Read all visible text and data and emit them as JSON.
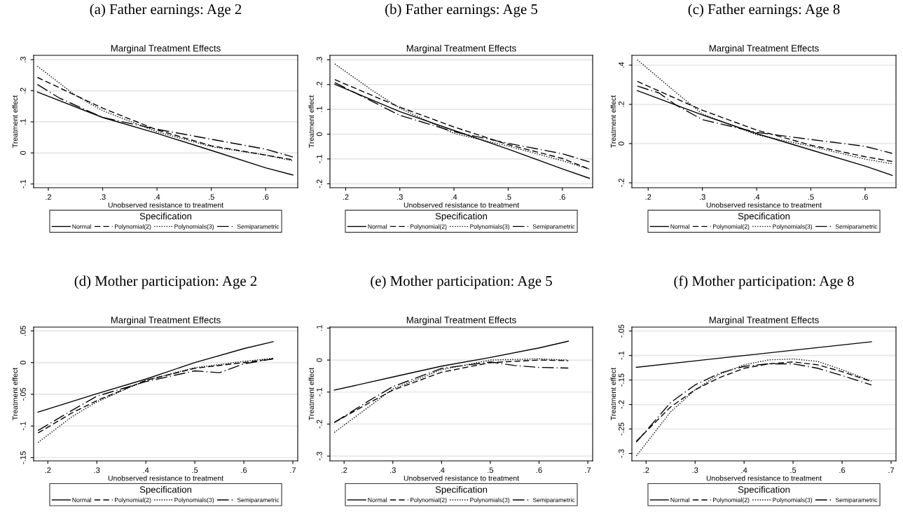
{
  "chart_data": [
    {
      "type": "line",
      "title": "(a) Father earnings: Age 2",
      "subtitle": "Marginal Treatment Effects",
      "xlabel": "Unobserved resistance to treatment",
      "ylabel": "Treatment effect",
      "legend_title": "Specification",
      "legend": "bottom",
      "grid": "y",
      "xlim": [
        0.173,
        0.659
      ],
      "ylim": [
        -0.112,
        0.314
      ],
      "xticks": [
        {
          "value": 0.2,
          "label": ".2"
        },
        {
          "value": 0.3,
          "label": ".3"
        },
        {
          "value": 0.4,
          "label": ".4"
        },
        {
          "value": 0.5,
          "label": ".5"
        },
        {
          "value": 0.6,
          "label": ".6"
        }
      ],
      "yticks": [
        {
          "value": -0.1,
          "label": "-.1"
        },
        0,
        {
          "value": 0.1,
          "label": ".1"
        },
        {
          "value": 0.2,
          "label": ".2"
        },
        {
          "value": 0.3,
          "label": ".3"
        }
      ],
      "series": [
        {
          "name": "Normal",
          "color": "#000000",
          "line_style": "solid",
          "x": [
            0.18,
            0.3,
            0.4,
            0.5,
            0.6,
            0.65
          ],
          "values": [
            0.196,
            0.114,
            0.063,
            0.008,
            -0.048,
            -0.071
          ]
        },
        {
          "name": "Polynomial(2)",
          "color": "#000000",
          "line_style": "dashed",
          "x": [
            0.18,
            0.3,
            0.4,
            0.5,
            0.6,
            0.65
          ],
          "values": [
            0.243,
            0.144,
            0.074,
            0.023,
            -0.007,
            -0.022
          ]
        },
        {
          "name": "Polynomials(3)",
          "color": "#000000",
          "line_style": "dotted",
          "x": [
            0.18,
            0.25,
            0.3,
            0.4,
            0.5,
            0.6,
            0.65
          ],
          "values": [
            0.279,
            0.185,
            0.136,
            0.068,
            0.02,
            -0.007,
            -0.026
          ]
        },
        {
          "name": "Semiparametric",
          "color": "#000000",
          "line_style": "dashdot",
          "x": [
            0.18,
            0.22,
            0.3,
            0.4,
            0.5,
            0.6,
            0.65
          ],
          "values": [
            0.22,
            0.177,
            0.114,
            0.076,
            0.044,
            0.012,
            -0.013
          ]
        }
      ]
    },
    {
      "type": "line",
      "title": "(b) Father earnings: Age 5",
      "subtitle": "Marginal Treatment Effects",
      "xlabel": "Unobserved resistance to treatment",
      "ylabel": "Treatment effect",
      "legend_title": "Specification",
      "legend": "bottom",
      "grid": "y",
      "xlim": [
        0.171,
        0.656
      ],
      "ylim": [
        -0.216,
        0.318
      ],
      "xticks": [
        {
          "value": 0.2,
          "label": ".2"
        },
        {
          "value": 0.3,
          "label": ".3"
        },
        {
          "value": 0.4,
          "label": ".4"
        },
        {
          "value": 0.5,
          "label": ".5"
        },
        {
          "value": 0.6,
          "label": ".6"
        }
      ],
      "yticks": [
        {
          "value": -0.2,
          "label": "-.2"
        },
        {
          "value": -0.1,
          "label": "-.1"
        },
        0,
        {
          "value": 0.1,
          "label": ".1"
        },
        {
          "value": 0.2,
          "label": ".2"
        },
        {
          "value": 0.3,
          "label": ".3"
        }
      ],
      "series": [
        {
          "name": "Normal",
          "color": "#000000",
          "line_style": "solid",
          "x": [
            0.18,
            0.3,
            0.4,
            0.5,
            0.6,
            0.65
          ],
          "values": [
            0.201,
            0.091,
            0.015,
            -0.06,
            -0.14,
            -0.178
          ]
        },
        {
          "name": "Polynomial(2)",
          "color": "#000000",
          "line_style": "dashed",
          "x": [
            0.18,
            0.3,
            0.4,
            0.5,
            0.6,
            0.65
          ],
          "values": [
            0.22,
            0.109,
            0.029,
            -0.042,
            -0.098,
            -0.141
          ]
        },
        {
          "name": "Polynomials(3)",
          "color": "#000000",
          "line_style": "dotted",
          "x": [
            0.18,
            0.25,
            0.3,
            0.4,
            0.5,
            0.6,
            0.65
          ],
          "values": [
            0.283,
            0.175,
            0.105,
            0.003,
            -0.048,
            -0.107,
            -0.141
          ]
        },
        {
          "name": "Semiparametric",
          "color": "#000000",
          "line_style": "dashdot",
          "x": [
            0.18,
            0.3,
            0.4,
            0.5,
            0.6,
            0.65
          ],
          "values": [
            0.208,
            0.076,
            0.01,
            -0.037,
            -0.079,
            -0.112
          ]
        }
      ]
    },
    {
      "type": "line",
      "title": "(c) Father earnings: Age 8",
      "subtitle": "Marginal Treatment Effects",
      "xlabel": "Unobserved resistance to treatment",
      "ylabel": "Treatment effect",
      "legend_title": "Specification",
      "legend": "bottom",
      "grid": "y",
      "xlim": [
        0.17,
        0.657
      ],
      "ylim": [
        -0.225,
        0.45
      ],
      "xticks": [
        {
          "value": 0.2,
          "label": ".2"
        },
        {
          "value": 0.3,
          "label": ".3"
        },
        {
          "value": 0.4,
          "label": ".4"
        },
        {
          "value": 0.5,
          "label": ".5"
        },
        {
          "value": 0.6,
          "label": ".6"
        }
      ],
      "yticks": [
        {
          "value": -0.2,
          "label": "-.2"
        },
        0,
        {
          "value": 0.2,
          "label": ".2"
        },
        {
          "value": 0.4,
          "label": ".4"
        }
      ],
      "series": [
        {
          "name": "Normal",
          "color": "#000000",
          "line_style": "solid",
          "x": [
            0.18,
            0.3,
            0.4,
            0.5,
            0.6,
            0.65
          ],
          "values": [
            0.27,
            0.146,
            0.051,
            -0.032,
            -0.115,
            -0.162
          ]
        },
        {
          "name": "Polynomial(2)",
          "color": "#000000",
          "line_style": "dashed",
          "x": [
            0.18,
            0.3,
            0.4,
            0.5,
            0.6,
            0.65
          ],
          "values": [
            0.317,
            0.17,
            0.069,
            -0.008,
            -0.067,
            -0.091
          ]
        },
        {
          "name": "Polynomials(3)",
          "color": "#000000",
          "line_style": "dotted",
          "x": [
            0.18,
            0.25,
            0.3,
            0.4,
            0.5,
            0.6,
            0.65
          ],
          "values": [
            0.427,
            0.264,
            0.151,
            0.045,
            -0.014,
            -0.079,
            -0.103
          ]
        },
        {
          "name": "Semiparametric",
          "color": "#000000",
          "line_style": "dashdot",
          "x": [
            0.18,
            0.22,
            0.25,
            0.3,
            0.4,
            0.5,
            0.6,
            0.65
          ],
          "values": [
            0.293,
            0.258,
            0.199,
            0.122,
            0.057,
            0.021,
            -0.014,
            -0.05
          ]
        }
      ]
    },
    {
      "type": "line",
      "title": "(d) Mother participation: Age 2",
      "subtitle": "Marginal Treatment Effects",
      "xlabel": "Unobserved resistance to treatment",
      "ylabel": "Treatment effect",
      "legend_title": "Specification",
      "legend": "bottom",
      "grid": "y",
      "xlim": [
        0.171,
        0.71
      ],
      "ylim": [
        -0.155,
        0.056
      ],
      "xticks": [
        {
          "value": 0.2,
          "label": ".2"
        },
        {
          "value": 0.3,
          "label": ".3"
        },
        {
          "value": 0.4,
          "label": ".4"
        },
        {
          "value": 0.5,
          "label": ".5"
        },
        {
          "value": 0.6,
          "label": ".6"
        },
        {
          "value": 0.7,
          "label": ".7"
        }
      ],
      "yticks": [
        {
          "value": -0.15,
          "label": "-.15"
        },
        {
          "value": -0.1,
          "label": "-.1"
        },
        {
          "value": -0.05,
          "label": "-.05"
        },
        0,
        {
          "value": 0.05,
          "label": ".05"
        }
      ],
      "series": [
        {
          "name": "Normal",
          "color": "#000000",
          "line_style": "solid",
          "x": [
            0.18,
            0.3,
            0.4,
            0.5,
            0.6,
            0.66
          ],
          "values": [
            -0.078,
            -0.049,
            -0.026,
            0.0,
            0.022,
            0.033
          ]
        },
        {
          "name": "Polynomial(2)",
          "color": "#000000",
          "line_style": "dashed",
          "x": [
            0.18,
            0.25,
            0.3,
            0.4,
            0.5,
            0.6,
            0.66
          ],
          "values": [
            -0.111,
            -0.079,
            -0.06,
            -0.028,
            -0.009,
            0.0,
            0.006
          ]
        },
        {
          "name": "Polynomials(3)",
          "color": "#000000",
          "line_style": "dotted",
          "x": [
            0.18,
            0.25,
            0.3,
            0.4,
            0.5,
            0.6,
            0.66
          ],
          "values": [
            -0.126,
            -0.085,
            -0.062,
            -0.028,
            -0.008,
            0.002,
            0.007
          ]
        },
        {
          "name": "Semiparametric",
          "color": "#000000",
          "line_style": "dashdot",
          "x": [
            0.18,
            0.25,
            0.3,
            0.4,
            0.5,
            0.55,
            0.6,
            0.66
          ],
          "values": [
            -0.107,
            -0.075,
            -0.053,
            -0.03,
            -0.013,
            -0.016,
            -0.002,
            0.006
          ]
        }
      ]
    },
    {
      "type": "line",
      "title": "(e) Mother participation: Age 5",
      "subtitle": "Marginal Treatment Effects",
      "xlabel": "Unobserved resistance to treatment",
      "ylabel": "Treatment effect",
      "legend_title": "Specification",
      "legend": "bottom",
      "grid": "y",
      "xlim": [
        0.171,
        0.71
      ],
      "ylim": [
        -0.315,
        0.103
      ],
      "xticks": [
        {
          "value": 0.2,
          "label": ".2"
        },
        {
          "value": 0.3,
          "label": ".3"
        },
        {
          "value": 0.4,
          "label": ".4"
        },
        {
          "value": 0.5,
          "label": ".5"
        },
        {
          "value": 0.6,
          "label": ".6"
        },
        {
          "value": 0.7,
          "label": ".7"
        }
      ],
      "yticks": [
        {
          "value": -0.3,
          "label": "-.3"
        },
        {
          "value": -0.2,
          "label": "-.2"
        },
        {
          "value": -0.1,
          "label": "-.1"
        },
        0,
        {
          "value": 0.1,
          "label": ".1"
        }
      ],
      "series": [
        {
          "name": "Normal",
          "color": "#000000",
          "line_style": "solid",
          "x": [
            0.18,
            0.3,
            0.4,
            0.5,
            0.6,
            0.66
          ],
          "values": [
            -0.094,
            -0.053,
            -0.019,
            0.008,
            0.038,
            0.059
          ]
        },
        {
          "name": "Polynomial(2)",
          "color": "#000000",
          "line_style": "dashed",
          "x": [
            0.18,
            0.25,
            0.3,
            0.4,
            0.5,
            0.6,
            0.66
          ],
          "values": [
            -0.195,
            -0.135,
            -0.094,
            -0.038,
            -0.008,
            0.0,
            -0.002
          ]
        },
        {
          "name": "Polynomials(3)",
          "color": "#000000",
          "line_style": "dotted",
          "x": [
            0.18,
            0.25,
            0.3,
            0.4,
            0.5,
            0.6,
            0.66
          ],
          "values": [
            -0.226,
            -0.147,
            -0.09,
            -0.03,
            0.0,
            0.004,
            0.0
          ]
        },
        {
          "name": "Semiparametric",
          "color": "#000000",
          "line_style": "dashdot",
          "x": [
            0.18,
            0.25,
            0.3,
            0.4,
            0.5,
            0.55,
            0.6,
            0.66
          ],
          "values": [
            -0.195,
            -0.128,
            -0.083,
            -0.026,
            -0.006,
            -0.017,
            -0.023,
            -0.025
          ]
        }
      ]
    },
    {
      "type": "line",
      "title": "(f) Mother participation: Age 8",
      "subtitle": "Marginal Treatment Effects",
      "xlabel": "Unobserved resistance to treatment",
      "ylabel": "Treatment effect",
      "legend_title": "Specification",
      "legend": "bottom",
      "grid": "y",
      "xlim": [
        0.171,
        0.71
      ],
      "ylim": [
        -0.315,
        -0.042
      ],
      "xticks": [
        {
          "value": 0.2,
          "label": ".2"
        },
        {
          "value": 0.3,
          "label": ".3"
        },
        {
          "value": 0.4,
          "label": ".4"
        },
        {
          "value": 0.5,
          "label": ".5"
        },
        {
          "value": 0.6,
          "label": ".6"
        },
        {
          "value": 0.7,
          "label": ".7"
        }
      ],
      "yticks": [
        {
          "value": -0.3,
          "label": "-.3"
        },
        {
          "value": -0.25,
          "label": "-.25"
        },
        {
          "value": -0.2,
          "label": "-.2"
        },
        {
          "value": -0.15,
          "label": "-.15"
        },
        {
          "value": -0.1,
          "label": "-.1"
        },
        {
          "value": -0.05,
          "label": "-.05"
        }
      ],
      "series": [
        {
          "name": "Normal",
          "color": "#000000",
          "line_style": "solid",
          "x": [
            0.18,
            0.4,
            0.66
          ],
          "values": [
            -0.124,
            -0.1,
            -0.072
          ]
        },
        {
          "name": "Polynomial(2)",
          "color": "#000000",
          "line_style": "dashed",
          "x": [
            0.18,
            0.25,
            0.3,
            0.35,
            0.4,
            0.45,
            0.5,
            0.55,
            0.6,
            0.66
          ],
          "values": [
            -0.275,
            -0.205,
            -0.17,
            -0.145,
            -0.126,
            -0.117,
            -0.113,
            -0.119,
            -0.133,
            -0.153
          ]
        },
        {
          "name": "Polynomials(3)",
          "color": "#000000",
          "line_style": "dotted",
          "x": [
            0.18,
            0.25,
            0.3,
            0.35,
            0.4,
            0.45,
            0.5,
            0.55,
            0.6,
            0.66
          ],
          "values": [
            -0.305,
            -0.215,
            -0.17,
            -0.138,
            -0.119,
            -0.109,
            -0.107,
            -0.112,
            -0.129,
            -0.152
          ]
        },
        {
          "name": "Semiparametric",
          "color": "#000000",
          "line_style": "dashdot",
          "x": [
            0.18,
            0.25,
            0.3,
            0.35,
            0.4,
            0.45,
            0.5,
            0.55,
            0.6,
            0.66
          ],
          "values": [
            -0.277,
            -0.196,
            -0.16,
            -0.136,
            -0.122,
            -0.117,
            -0.117,
            -0.126,
            -0.141,
            -0.16
          ]
        }
      ]
    }
  ]
}
